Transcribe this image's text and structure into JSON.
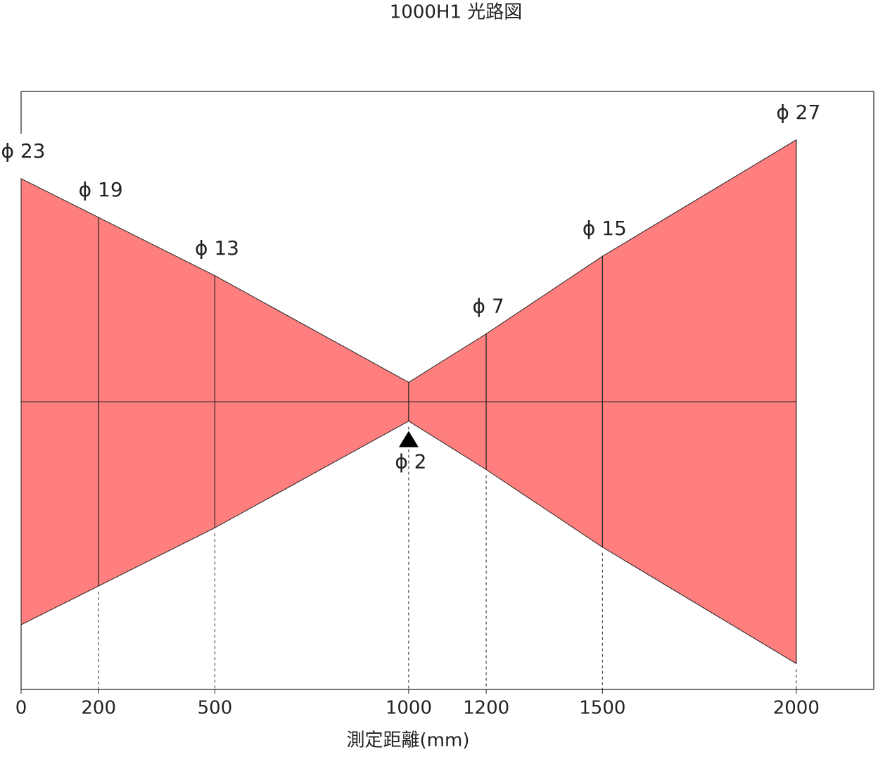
{
  "chart_data": {
    "type": "beam",
    "title": "1000H1 光路図",
    "x_label": "測定距離(mm)",
    "x": [
      0,
      200,
      500,
      1000,
      1200,
      1500,
      2000
    ],
    "values": [
      23,
      19,
      13,
      2,
      7,
      15,
      27
    ],
    "value_labels": [
      "ϕ 23",
      "ϕ 19",
      "ϕ 13",
      "ϕ 2",
      "ϕ 7",
      "ϕ 15",
      "ϕ 27"
    ],
    "color": "#ff7f7f",
    "xlim": [
      0,
      2200
    ],
    "xticks": [
      0,
      200,
      500,
      1000,
      1200,
      1500,
      2000
    ]
  }
}
